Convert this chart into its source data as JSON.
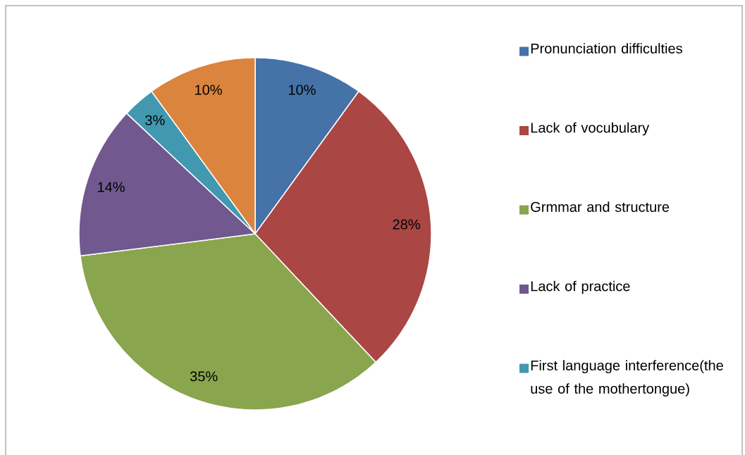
{
  "chart_data": {
    "type": "pie",
    "categories": [
      "Pronunciation difficulties",
      "Lack of vocubulary",
      "Grmmar and structure",
      "Lack of practice",
      "First language interference(the use of the mothertongue)",
      null
    ],
    "values": [
      10,
      28,
      35,
      14,
      3,
      10
    ],
    "value_labels": [
      "10%",
      "28%",
      "35%",
      "14%",
      "3%",
      "10%"
    ],
    "colors": [
      "#4572a7",
      "#aa4643",
      "#89a54e",
      "#71588f",
      "#4198af",
      "#db843d"
    ],
    "legend": "right"
  }
}
